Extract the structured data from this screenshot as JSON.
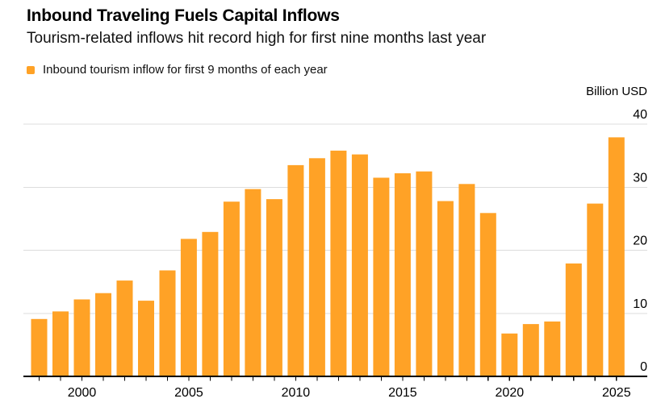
{
  "chart_data": {
    "type": "bar",
    "title": "Inbound Traveling Fuels Capital Inflows",
    "subtitle": "Tourism-related inflows hit record high for first nine months last year",
    "legend": "Inbound tourism inflow for first 9 months of each year",
    "ylabel": "Billion USD",
    "categories": [
      1998,
      1999,
      2000,
      2001,
      2002,
      2003,
      2004,
      2005,
      2006,
      2007,
      2008,
      2009,
      2010,
      2011,
      2012,
      2013,
      2014,
      2015,
      2016,
      2017,
      2018,
      2019,
      2020,
      2021,
      2022,
      2023,
      2024,
      2025
    ],
    "values": [
      9.1,
      10.3,
      12.2,
      13.2,
      15.2,
      12.0,
      16.8,
      21.8,
      22.9,
      27.7,
      29.7,
      28.1,
      33.5,
      34.6,
      35.8,
      35.2,
      31.5,
      32.2,
      32.5,
      27.8,
      30.5,
      25.9,
      6.8,
      8.3,
      8.7,
      17.9,
      27.4,
      37.9
    ],
    "x_tick_labels": [
      "2000",
      "2005",
      "2010",
      "2015",
      "2020",
      "2025"
    ],
    "y_ticks": [
      0,
      10,
      20,
      30,
      40
    ],
    "ylim": [
      0,
      40
    ],
    "grid": true,
    "legend_position": "top-left",
    "colors": {
      "bar": "#FFA226",
      "grid": "#DCDCDC",
      "axis": "#000000",
      "text": "#000000",
      "background": "#FFFFFF"
    }
  }
}
